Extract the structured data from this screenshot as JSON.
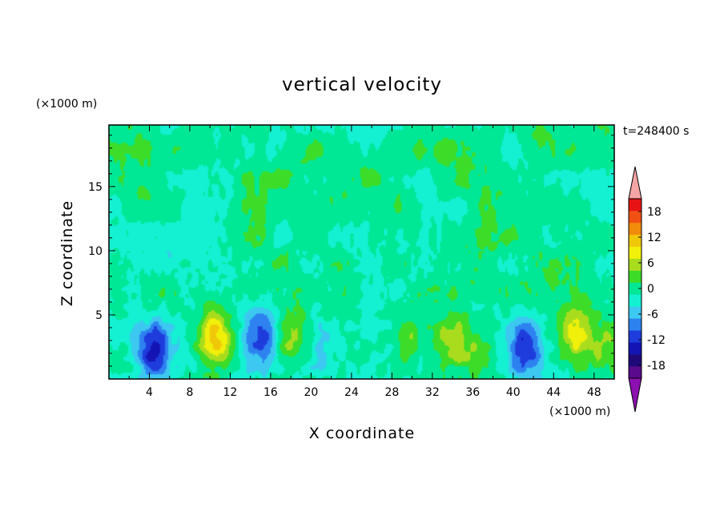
{
  "chart_data": {
    "type": "heatmap",
    "title": "vertical velocity",
    "xlabel": "X coordinate",
    "ylabel": "Z coordinate",
    "x_unit": "(×1000 m)",
    "y_unit": "(×1000 m)",
    "time_label": "t=248400 s",
    "xlim": [
      0,
      50
    ],
    "ylim": [
      0,
      19.8
    ],
    "x_ticks": [
      4,
      8,
      12,
      16,
      20,
      24,
      28,
      32,
      36,
      40,
      44,
      48
    ],
    "y_ticks": [
      5,
      10,
      15
    ],
    "colorbar": {
      "ticks": [
        18,
        12,
        6,
        0,
        -6,
        -12,
        -18
      ],
      "levels": [
        -21,
        -18,
        -15,
        -12,
        -9,
        -6,
        -3,
        0,
        3,
        6,
        9,
        12,
        15,
        18,
        21
      ],
      "colors": [
        "#5a0a8c",
        "#1e0a78",
        "#1414b4",
        "#1e3cdc",
        "#2d82f0",
        "#3cc8f0",
        "#14f0d2",
        "#00e896",
        "#3cdc28",
        "#aadc1e",
        "#f0f00a",
        "#f0c80a",
        "#f08c0a",
        "#f05014",
        "#e61414"
      ],
      "under_color": "#8c10b0",
      "over_color": "#f5a5a5"
    },
    "features": [
      {
        "kind": "downdraft",
        "x": 4.5,
        "z": 2.3,
        "peak": -14
      },
      {
        "kind": "updraft",
        "x": 10.5,
        "z": 3.2,
        "peak": 13
      },
      {
        "kind": "downdraft",
        "x": 15.0,
        "z": 3.2,
        "peak": -11
      },
      {
        "kind": "updraft",
        "x": 18.2,
        "z": 3.3,
        "peak": 8
      },
      {
        "kind": "downdraft",
        "x": 21.0,
        "z": 2.5,
        "peak": -4
      },
      {
        "kind": "updraft",
        "x": 29.8,
        "z": 3.0,
        "peak": 4
      },
      {
        "kind": "updraft",
        "x": 34.0,
        "z": 2.8,
        "peak": 8
      },
      {
        "kind": "updraft",
        "x": 36.5,
        "z": 2.0,
        "peak": 5
      },
      {
        "kind": "downdraft",
        "x": 41.2,
        "z": 2.4,
        "peak": -13
      },
      {
        "kind": "updraft",
        "x": 46.2,
        "z": 3.6,
        "peak": 11
      },
      {
        "kind": "updraft",
        "x": 49.0,
        "z": 2.6,
        "peak": 6
      }
    ]
  }
}
